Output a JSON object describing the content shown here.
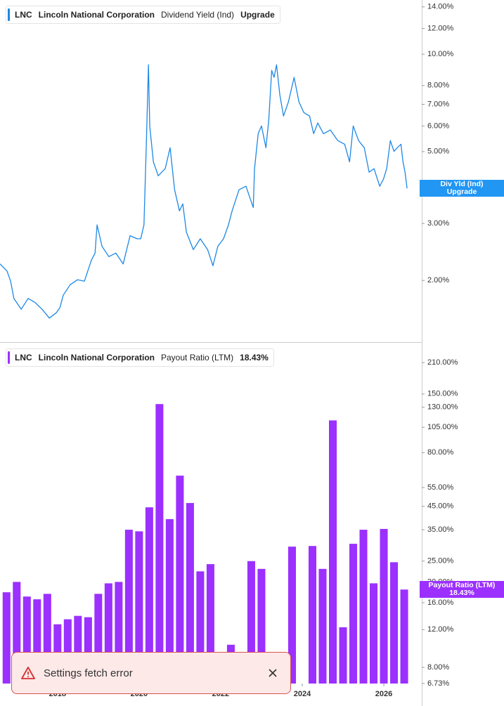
{
  "chart_data": [
    {
      "type": "line",
      "ticker": "LNC",
      "company": "Lincoln National Corporation",
      "title": "Dividend Yield (Ind)",
      "badge": "Upgrade",
      "axis_tag": "Div Yld (Ind)",
      "axis_tag_badge": "Upgrade",
      "log_y": true,
      "grid": false,
      "xlim": [
        2016.59,
        2026.93
      ],
      "ylim": [
        1.29,
        14.7
      ],
      "yticks": [
        {
          "value": 14,
          "label": "14.00%"
        },
        {
          "value": 12,
          "label": "12.00%"
        },
        {
          "value": 10,
          "label": "10.00%"
        },
        {
          "value": 8,
          "label": "8.00%"
        },
        {
          "value": 7,
          "label": "7.00%"
        },
        {
          "value": 6,
          "label": "6.00%"
        },
        {
          "value": 5,
          "label": "5.00%"
        },
        {
          "value": 3,
          "label": "3.00%"
        },
        {
          "value": 2,
          "label": "2.00%"
        }
      ],
      "x": [
        2016.59,
        2016.76,
        2016.85,
        2016.93,
        2017.11,
        2017.28,
        2017.45,
        2017.62,
        2017.8,
        2017.97,
        2018.06,
        2018.14,
        2018.31,
        2018.49,
        2018.66,
        2018.83,
        2018.92,
        2018.97,
        2019.09,
        2019.26,
        2019.43,
        2019.61,
        2019.78,
        2019.95,
        2020.04,
        2020.12,
        2020.18,
        2020.23,
        2020.26,
        2020.35,
        2020.47,
        2020.64,
        2020.76,
        2020.87,
        2020.99,
        2021.07,
        2021.16,
        2021.33,
        2021.5,
        2021.68,
        2021.81,
        2021.93,
        2022.07,
        2022.19,
        2022.28,
        2022.45,
        2022.62,
        2022.8,
        2022.83,
        2022.92,
        2023.0,
        2023.11,
        2023.18,
        2023.25,
        2023.31,
        2023.37,
        2023.45,
        2023.54,
        2023.66,
        2023.8,
        2023.92,
        2024.04,
        2024.18,
        2024.28,
        2024.38,
        2024.52,
        2024.69,
        2024.87,
        2025.04,
        2025.16,
        2025.25,
        2025.38,
        2025.52,
        2025.64,
        2025.76,
        2025.9,
        2025.99,
        2026.07,
        2026.16,
        2026.25,
        2026.33,
        2026.42,
        2026.47,
        2026.52,
        2026.57
      ],
      "series": [
        {
          "name": "Dividend Yield (Ind)",
          "color": "#1e88e5",
          "values": [
            2.25,
            2.14,
            1.99,
            1.76,
            1.63,
            1.76,
            1.71,
            1.63,
            1.53,
            1.59,
            1.65,
            1.8,
            1.94,
            2.01,
            1.99,
            2.31,
            2.43,
            2.97,
            2.55,
            2.37,
            2.43,
            2.25,
            2.75,
            2.69,
            2.69,
            2.97,
            5.41,
            9.28,
            6.0,
            4.65,
            4.21,
            4.43,
            5.14,
            3.81,
            3.28,
            3.45,
            2.82,
            2.49,
            2.69,
            2.49,
            2.22,
            2.55,
            2.69,
            2.97,
            3.28,
            3.81,
            3.91,
            3.36,
            4.43,
            5.68,
            6.0,
            5.14,
            6.28,
            8.91,
            8.48,
            9.28,
            7.49,
            6.44,
            7.12,
            8.48,
            7.12,
            6.6,
            6.44,
            5.68,
            6.13,
            5.68,
            5.83,
            5.41,
            5.27,
            4.65,
            6.0,
            5.41,
            5.14,
            4.32,
            4.43,
            3.91,
            4.11,
            4.43,
            5.41,
            5.01,
            5.14,
            5.27,
            4.65,
            4.32,
            3.85
          ]
        }
      ]
    },
    {
      "type": "bar",
      "ticker": "LNC",
      "company": "Lincoln National Corporation",
      "title": "Payout Ratio (LTM)",
      "badge": "18.43%",
      "axis_tag": "Payout Ratio (LTM)",
      "axis_tag_badge": "18.43%",
      "log_y": true,
      "grid": false,
      "color": "#9b30ff",
      "xlim": [
        2016.59,
        2026.93
      ],
      "ylim": [
        6.73,
        250
      ],
      "xticks": [
        2018,
        2020,
        2022,
        2024,
        2026
      ],
      "yticks": [
        {
          "value": 210,
          "label": "210.00%"
        },
        {
          "value": 150,
          "label": "150.00%"
        },
        {
          "value": 130,
          "label": "130.00%"
        },
        {
          "value": 105,
          "label": "105.00%"
        },
        {
          "value": 80,
          "label": "80.00%"
        },
        {
          "value": 55,
          "label": "55.00%"
        },
        {
          "value": 45,
          "label": "45.00%"
        },
        {
          "value": 35,
          "label": "35.00%"
        },
        {
          "value": 25,
          "label": "25.00%"
        },
        {
          "value": 20,
          "label": "20.00%"
        },
        {
          "value": 16,
          "label": "16.00%"
        },
        {
          "value": 12,
          "label": "12.00%"
        },
        {
          "value": 8,
          "label": "8.00%"
        },
        {
          "value": 6.73,
          "label": "6.73%"
        }
      ],
      "x": [
        2016.75,
        2017.0,
        2017.25,
        2017.5,
        2017.75,
        2018.0,
        2018.25,
        2018.5,
        2018.75,
        2019.0,
        2019.25,
        2019.5,
        2019.75,
        2020.0,
        2020.25,
        2020.5,
        2020.75,
        2021.0,
        2021.25,
        2021.5,
        2021.75,
        2022.0,
        2022.25,
        2022.5,
        2022.75,
        2023.0,
        2023.25,
        2023.5,
        2023.75,
        2024.0,
        2024.25,
        2024.5,
        2024.75,
        2025.0,
        2025.25,
        2025.5,
        2025.75,
        2026.0,
        2026.25,
        2026.5
      ],
      "values": [
        17.9,
        20.0,
        17.1,
        16.6,
        17.6,
        12.7,
        13.4,
        13.9,
        13.7,
        17.6,
        19.7,
        20.0,
        35.0,
        34.4,
        44.5,
        134.6,
        39.2,
        62.5,
        46.6,
        22.4,
        24.2,
        null,
        10.2,
        null,
        25.0,
        23.0,
        null,
        null,
        29.2,
        null,
        29.4,
        23.0,
        113.0,
        12.3,
        30.1,
        35.0,
        19.7,
        35.3,
        24.7,
        18.43
      ]
    }
  ],
  "toast": {
    "message": "Settings fetch error"
  }
}
